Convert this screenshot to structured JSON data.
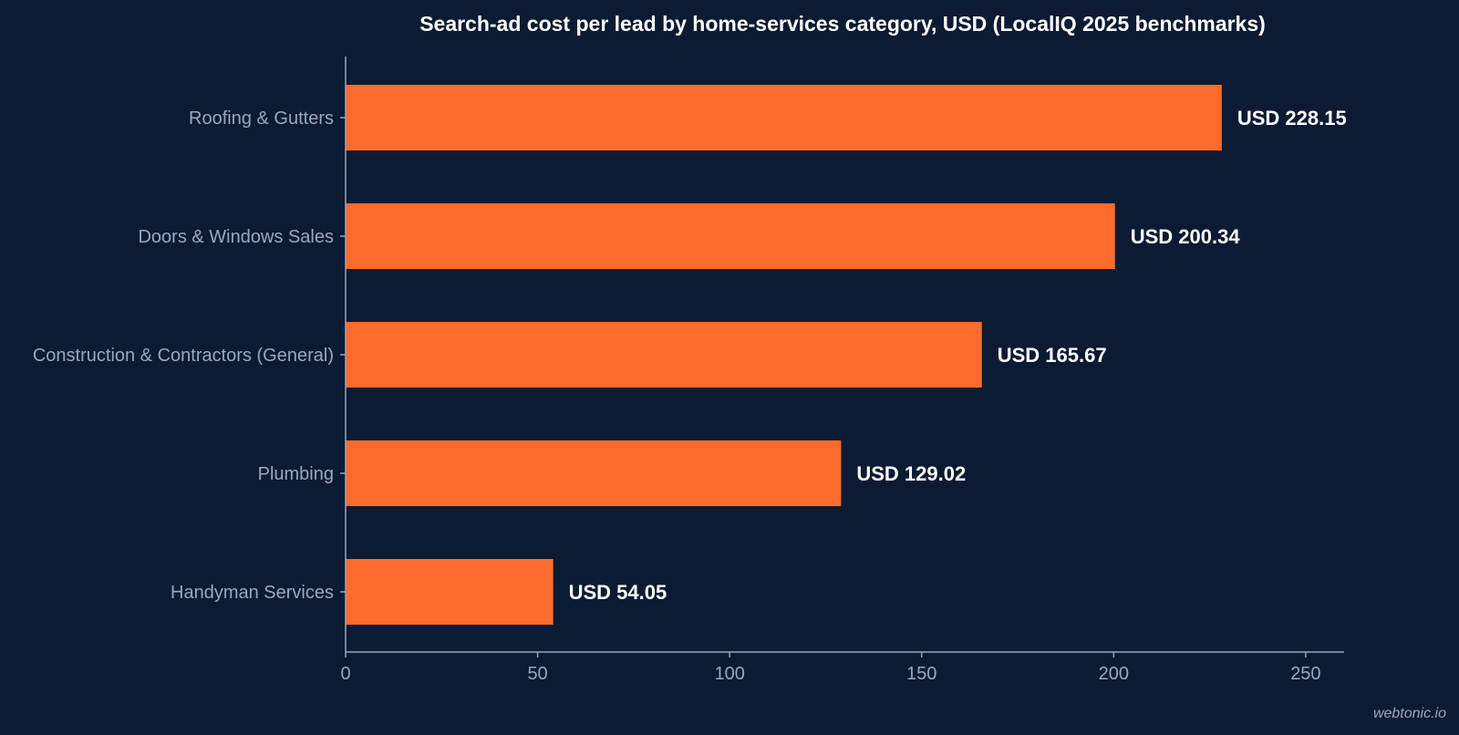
{
  "chart_data": {
    "type": "bar",
    "orientation": "horizontal",
    "title": "Search-ad cost per lead by home-services category, USD (LocalIQ 2025 benchmarks)",
    "categories": [
      "Roofing & Gutters",
      "Doors & Windows Sales",
      "Construction & Contractors (General)",
      "Plumbing",
      "Handyman Services"
    ],
    "values": [
      228.15,
      200.34,
      165.67,
      129.02,
      54.05
    ],
    "data_labels": [
      "USD 228.15",
      "USD 200.34",
      "USD 165.67",
      "USD 129.02",
      "USD 54.05"
    ],
    "xlim": [
      0,
      260
    ],
    "xticks": [
      0,
      50,
      100,
      150,
      200,
      250
    ],
    "grid": false,
    "bar_color": "#ff6b2d"
  },
  "watermark": "webtonic.io",
  "colors": {
    "background": "#0c1b33",
    "bar": "#ff6b2d",
    "text": "#ffffff",
    "muted_text": "#9aa8bd"
  }
}
